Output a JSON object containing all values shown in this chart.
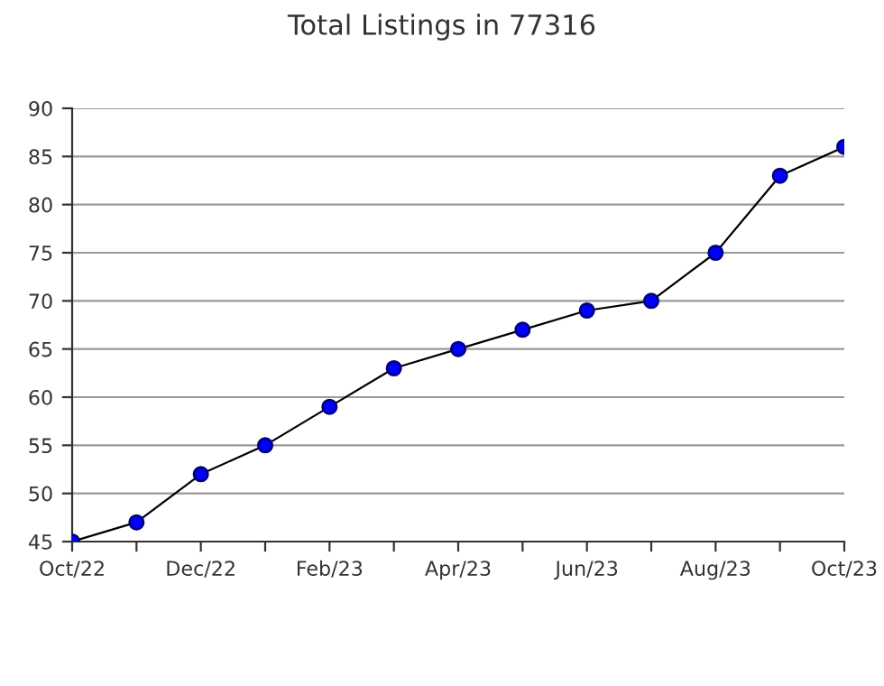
{
  "chart_data": {
    "type": "line",
    "title": "Total Listings in 77316",
    "categories": [
      "Oct/22",
      null,
      "Dec/22",
      null,
      "Feb/23",
      null,
      "Apr/23",
      null,
      "Jun/23",
      null,
      "Aug/23",
      null,
      "Oct/23"
    ],
    "series": [
      {
        "color": "#0000ff",
        "values": [
          45,
          47,
          52,
          55,
          59,
          63,
          65,
          67,
          69,
          70,
          75,
          83,
          86
        ]
      }
    ],
    "ylim": [
      45,
      90
    ],
    "yticks": [
      45,
      50,
      55,
      60,
      65,
      70,
      75,
      80,
      85,
      90
    ],
    "grid": "y",
    "marker": "circle",
    "line_style": "solid",
    "legend": false
  }
}
